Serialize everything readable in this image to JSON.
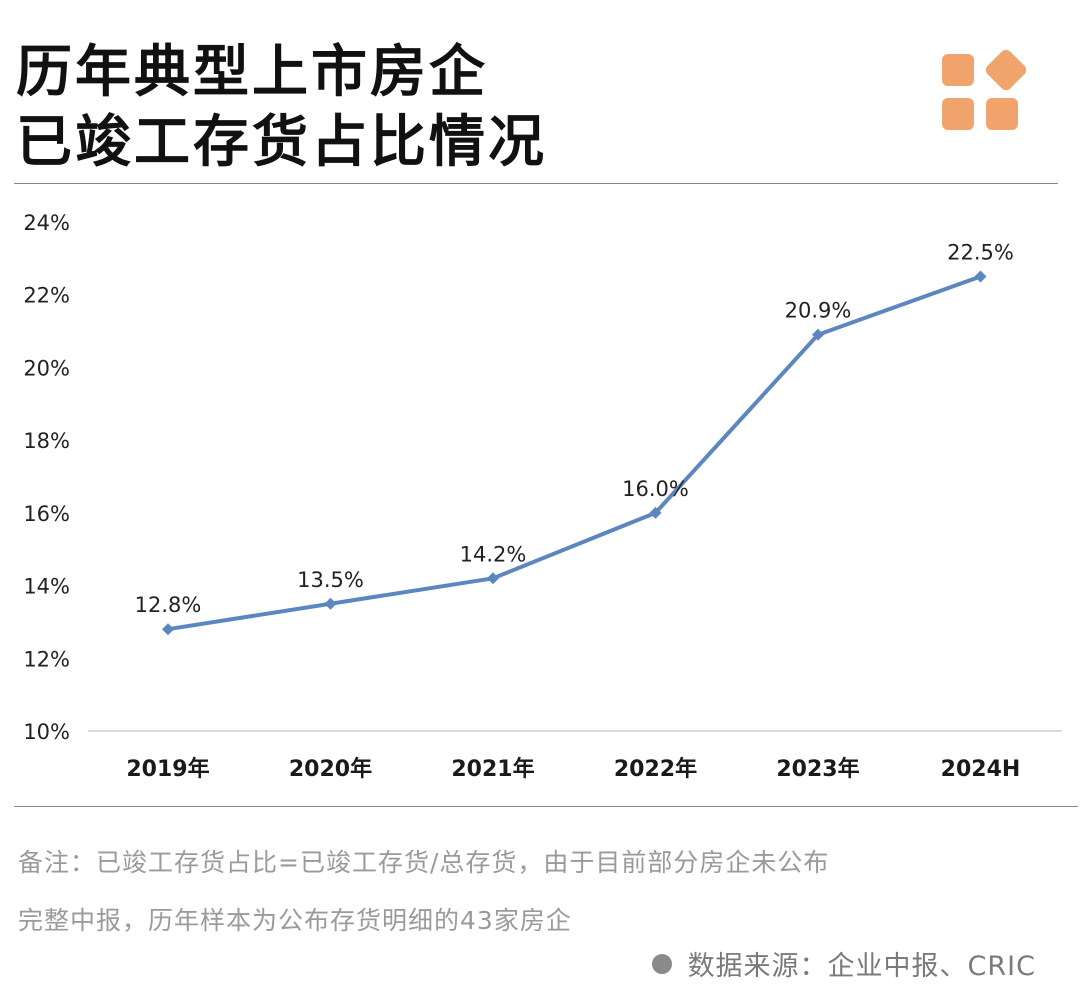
{
  "header": {
    "title_line1": "历年典型上市房企",
    "title_line2": "已竣工存货占比情况"
  },
  "colors": {
    "line": "#5b86bf",
    "logo": "#f0a46b",
    "text": "#111111"
  },
  "chart_data": {
    "type": "line",
    "categories": [
      "2019年",
      "2020年",
      "2021年",
      "2022年",
      "2023年",
      "2024H"
    ],
    "values": [
      12.8,
      13.5,
      14.2,
      16.0,
      20.9,
      22.5
    ],
    "data_labels": [
      "12.8%",
      "13.5%",
      "14.2%",
      "16.0%",
      "20.9%",
      "22.5%"
    ],
    "y_ticks": [
      "10%",
      "12%",
      "14%",
      "16%",
      "18%",
      "20%",
      "22%",
      "24%"
    ],
    "ylim": [
      10,
      24
    ],
    "grid": false,
    "title": "",
    "xlabel": "",
    "ylabel": ""
  },
  "footer": {
    "note_line1": "备注：已竣工存货占比=已竣工存货/总存货，由于目前部分房企未公布",
    "note_line2": "完整中报，历年样本为公布存货明细的43家房企",
    "source": "数据来源：企业中报、CRIC"
  }
}
